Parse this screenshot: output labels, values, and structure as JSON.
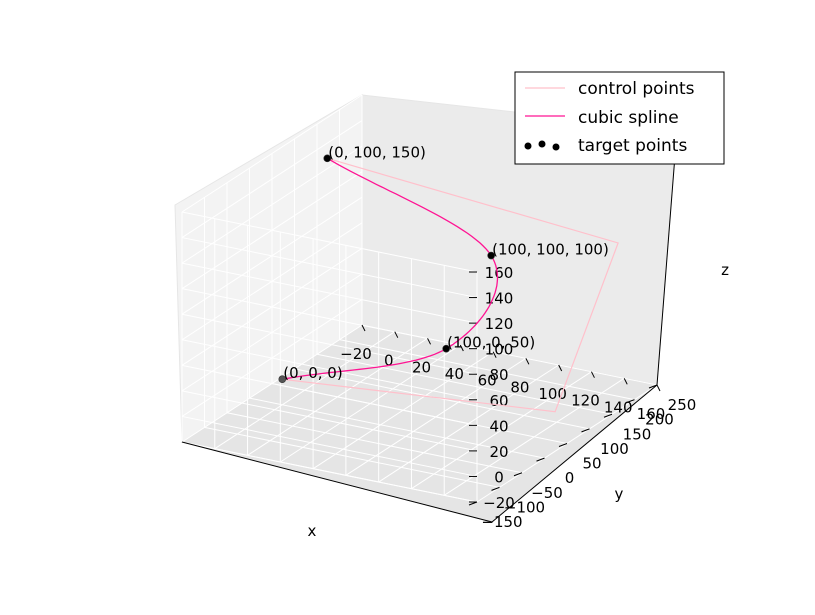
{
  "chart_data": {
    "type": "line",
    "projection": "3d",
    "xlabel": "x",
    "ylabel": "y",
    "zlabel": "z",
    "xlim": [
      -20,
      160
    ],
    "ylim": [
      -150,
      250
    ],
    "zlim": [
      -20,
      160
    ],
    "x_ticks": [
      -20,
      0,
      20,
      40,
      60,
      80,
      100,
      120,
      140,
      160
    ],
    "y_ticks": [
      -150,
      -100,
      -50,
      0,
      50,
      100,
      150,
      200,
      250
    ],
    "z_ticks": [
      -20,
      0,
      20,
      40,
      60,
      80,
      100,
      120,
      140,
      160
    ],
    "grid": true,
    "legend_position": "top-right",
    "series": [
      {
        "name": "control points",
        "kind": "line",
        "color": "#ffc0cb",
        "points": [
          [
            0,
            0,
            0
          ],
          [
            150,
            60,
            0
          ],
          [
            150,
            200,
            100
          ],
          [
            0,
            100,
            150
          ]
        ]
      },
      {
        "name": "cubic spline",
        "kind": "line",
        "color": "#ff1493",
        "points": [
          [
            0,
            0,
            0
          ],
          [
            100,
            0,
            50
          ],
          [
            100,
            100,
            100
          ],
          [
            0,
            100,
            150
          ]
        ]
      },
      {
        "name": "target points",
        "kind": "scatter",
        "color": "#000000",
        "points": [
          [
            0,
            0,
            0
          ],
          [
            100,
            0,
            50
          ],
          [
            100,
            100,
            100
          ],
          [
            0,
            100,
            150
          ]
        ]
      }
    ],
    "annotations": [
      {
        "point": [
          0,
          0,
          0
        ],
        "text": "(0, 0, 0)"
      },
      {
        "point": [
          100,
          0,
          50
        ],
        "text": "(100, 0, 50)"
      },
      {
        "point": [
          100,
          100,
          100
        ],
        "text": "(100, 100, 100)"
      },
      {
        "point": [
          0,
          100,
          150
        ],
        "text": "(0, 100, 150)"
      }
    ]
  }
}
